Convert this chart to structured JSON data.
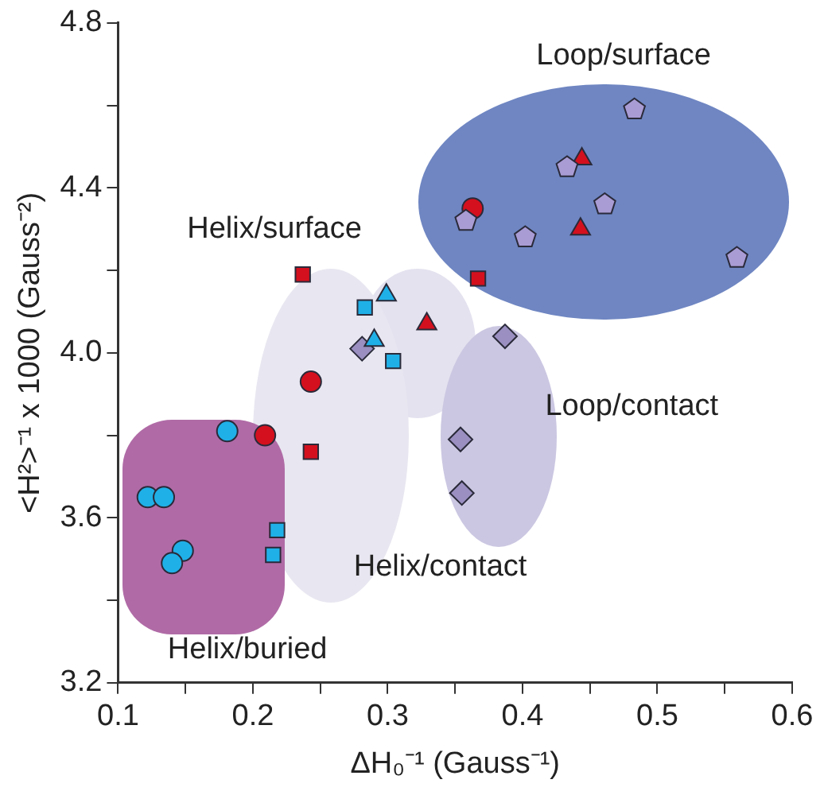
{
  "chart_data": {
    "type": "scatter",
    "xlabel": "ΔH₀⁻¹ (Gauss⁻¹)",
    "ylabel": "<H²>⁻¹ x 1000 (Gauss⁻²)",
    "xlim": [
      0.1,
      0.6
    ],
    "xticks": [
      0.1,
      {
        "value": 0.15,
        "label": null
      },
      0.2,
      {
        "value": 0.25,
        "label": null
      },
      0.3,
      {
        "value": 0.35,
        "label": null
      },
      0.4,
      {
        "value": 0.45,
        "label": null
      },
      0.5,
      {
        "value": 0.55,
        "label": null
      },
      0.6
    ],
    "ylim": [
      3.2,
      4.8
    ],
    "yticks": [
      3.2,
      {
        "value": 3.4,
        "label": null
      },
      3.6,
      {
        "value": 3.8,
        "label": null
      },
      {
        "value": 4.0,
        "label": "4.0"
      },
      {
        "value": 4.2,
        "label": null
      },
      4.4,
      {
        "value": 4.6,
        "label": null
      },
      4.8
    ],
    "grid": false,
    "legend": false,
    "series": [
      {
        "color": "#1fb0e8",
        "marker": "circle",
        "x": [
          0.122,
          0.134,
          0.148,
          0.14,
          0.181
        ],
        "values": [
          3.65,
          3.65,
          3.52,
          3.49,
          3.81
        ]
      },
      {
        "color": "#d4101e",
        "marker": "circle",
        "x": [
          0.209,
          0.243,
          0.363
        ],
        "values": [
          3.8,
          3.93,
          4.35
        ]
      },
      {
        "color": "#d4101e",
        "marker": "square",
        "x": [
          0.237,
          0.243,
          0.367
        ],
        "values": [
          4.19,
          3.76,
          4.18
        ]
      },
      {
        "color": "#1fb0e8",
        "marker": "square",
        "x": [
          0.283,
          0.304,
          0.218,
          0.215
        ],
        "values": [
          4.11,
          3.98,
          3.57,
          3.51
        ]
      },
      {
        "color": "#1fb0e8",
        "marker": "triangle",
        "x": [
          0.299,
          0.29
        ],
        "values": [
          4.14,
          4.03
        ]
      },
      {
        "color": "#d4101e",
        "marker": "triangle",
        "x": [
          0.329,
          0.444,
          0.443
        ],
        "values": [
          4.07,
          4.47,
          4.3
        ]
      },
      {
        "color": "#9a8fc0",
        "marker": "diamond",
        "x": [
          0.281,
          0.387,
          0.354,
          0.355
        ],
        "values": [
          4.01,
          4.04,
          3.79,
          3.66
        ]
      },
      {
        "color": "#a99cd4",
        "x": [
          0.483,
          0.433,
          0.461,
          0.358,
          0.402,
          0.559
        ],
        "values": [
          4.59,
          4.45,
          4.36,
          4.32,
          4.28,
          4.23
        ]
      }
    ],
    "annotations": [
      "Loop/surface",
      "Helix/surface",
      "Loop/contact",
      "Helix/contact",
      "Helix/buried"
    ]
  }
}
